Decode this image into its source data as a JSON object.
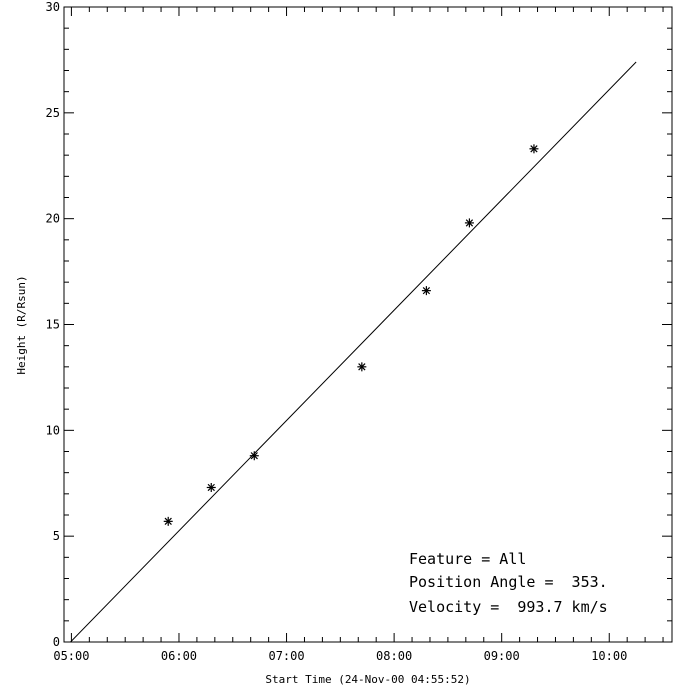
{
  "chart_data": {
    "type": "scatter",
    "xlabel": "Start Time (24-Nov-00 04:55:52)",
    "ylabel": "Height (R/Rsun)",
    "x_ticks": [
      "05:00",
      "06:00",
      "07:00",
      "08:00",
      "09:00",
      "10:00"
    ],
    "y_ticks": [
      "0",
      "5",
      "10",
      "15",
      "20",
      "25",
      "30"
    ],
    "xlim": [
      "04:55:52",
      "10:35:00"
    ],
    "ylim": [
      0,
      30
    ],
    "grid": false,
    "points": [
      {
        "time": "05:54",
        "height": 5.7
      },
      {
        "time": "06:18",
        "height": 7.3
      },
      {
        "time": "06:42",
        "height": 8.8
      },
      {
        "time": "07:42",
        "height": 13.0
      },
      {
        "time": "08:18",
        "height": 16.6
      },
      {
        "time": "08:42",
        "height": 19.8
      },
      {
        "time": "09:18",
        "height": 23.3
      }
    ],
    "fit_line": [
      {
        "time": "04:59:30",
        "height": 0.0
      },
      {
        "time": "10:15:00",
        "height": 27.4
      }
    ],
    "annotations": [
      "Feature = All",
      "Position Angle =  353.",
      "Velocity =  993.7 km/s"
    ]
  }
}
